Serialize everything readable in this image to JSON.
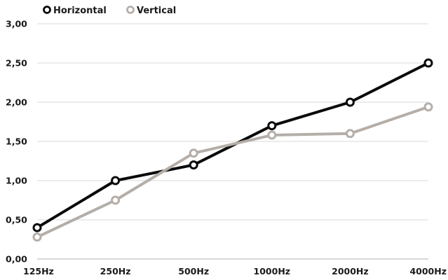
{
  "chart_data": {
    "type": "line",
    "categories": [
      "125Hz",
      "250Hz",
      "500Hz",
      "1000Hz",
      "2000Hz",
      "4000Hz"
    ],
    "series": [
      {
        "name": "Horizontal",
        "color": "#0a0a0a",
        "values": [
          0.4,
          1.0,
          1.2,
          1.7,
          2.0,
          2.5
        ]
      },
      {
        "name": "Vertical",
        "color": "#b5aea8",
        "values": [
          0.28,
          0.75,
          1.35,
          1.58,
          1.6,
          1.94
        ]
      }
    ],
    "ylim": [
      0,
      3
    ],
    "yticks": [
      "0,00",
      "0,50",
      "1,00",
      "1,50",
      "2,00",
      "2,50",
      "3,00"
    ],
    "ytick_values": [
      0,
      0.5,
      1,
      1.5,
      2,
      2.5,
      3
    ],
    "grid": true,
    "legend": "top-left",
    "title": "",
    "xlabel": "",
    "ylabel": ""
  }
}
